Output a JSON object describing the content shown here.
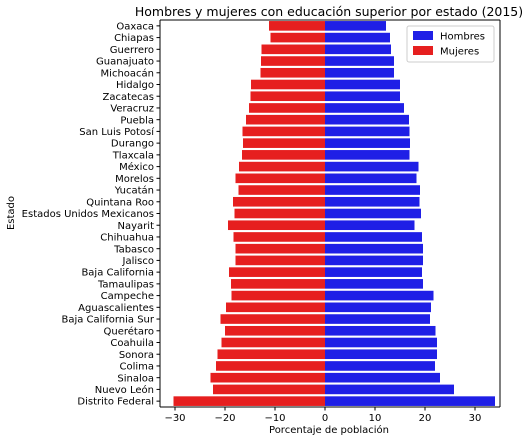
{
  "chart_data": {
    "type": "bar",
    "orientation": "horizontal",
    "title": "Hombres y mujeres con educación superior por estado (2015)",
    "xlabel": "Porcentaje de población",
    "ylabel": "Estado",
    "xlim": [
      -33,
      35
    ],
    "xticks": [
      -30,
      -20,
      -10,
      0,
      10,
      20,
      30
    ],
    "grid": false,
    "legend_position": "top-right",
    "categories": [
      "Oaxaca",
      "Chiapas",
      "Guerrero",
      "Guanajuato",
      "Michoacán",
      "Hidalgo",
      "Zacatecas",
      "Veracruz",
      "Puebla",
      "San Luis Potosí",
      "Durango",
      "Tlaxcala",
      "México",
      "Morelos",
      "Yucatán",
      "Quintana Roo",
      "Estados Unidos Mexicanos",
      "Nayarit",
      "Chihuahua",
      "Tabasco",
      "Jalisco",
      "Baja California",
      "Tamaulipas",
      "Campeche",
      "Aguascalientes",
      "Baja California Sur",
      "Querétaro",
      "Coahuila",
      "Sonora",
      "Colima",
      "Sinaloa",
      "Nuevo León",
      "Distrito Federal"
    ],
    "series": [
      {
        "name": "Hombres",
        "color": "#1f1fe6",
        "values": [
          12.2,
          13.0,
          13.2,
          13.8,
          13.8,
          15.0,
          15.0,
          15.8,
          16.8,
          16.9,
          17.0,
          16.9,
          18.7,
          18.3,
          19.0,
          18.9,
          19.2,
          17.9,
          19.4,
          19.6,
          19.6,
          19.4,
          19.6,
          21.7,
          21.2,
          21.0,
          22.1,
          22.4,
          22.4,
          22.0,
          23.0,
          25.8,
          34.0
        ]
      },
      {
        "name": "Mujeres",
        "color": "#e61f1f",
        "values": [
          -11.2,
          -10.9,
          -12.7,
          -12.8,
          -12.9,
          -14.8,
          -14.9,
          -15.2,
          -15.8,
          -16.5,
          -16.4,
          -16.6,
          -17.2,
          -17.9,
          -17.3,
          -18.4,
          -18.1,
          -19.4,
          -18.3,
          -17.9,
          -17.9,
          -19.2,
          -18.8,
          -18.7,
          -19.8,
          -20.9,
          -20.0,
          -20.7,
          -21.5,
          -21.8,
          -22.9,
          -22.4,
          -30.3
        ]
      }
    ]
  }
}
